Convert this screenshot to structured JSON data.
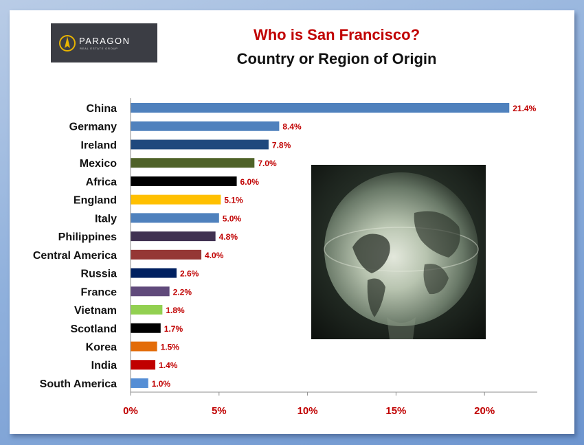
{
  "logo": {
    "name": "PARAGON",
    "subtitle": "REAL ESTATE GROUP"
  },
  "title": "Who is San Francisco?",
  "subtitle": "Country or Region of Origin",
  "chart_data": {
    "type": "bar",
    "orientation": "horizontal",
    "title": "Who is San Francisco?",
    "subtitle": "Country or Region of Origin",
    "categories": [
      "China",
      "Germany",
      "Ireland",
      "Mexico",
      "Africa",
      "England",
      "Italy",
      "Philippines",
      "Central America",
      "Russia",
      "France",
      "Vietnam",
      "Scotland",
      "Korea",
      "India",
      "South America"
    ],
    "values": [
      21.4,
      8.4,
      7.8,
      7.0,
      6.0,
      5.1,
      5.0,
      4.8,
      4.0,
      2.6,
      2.2,
      1.8,
      1.7,
      1.5,
      1.4,
      1.0
    ],
    "value_labels": [
      "21.4%",
      "8.4%",
      "7.8%",
      "7.0%",
      "6.0%",
      "5.1%",
      "5.0%",
      "4.8%",
      "4.0%",
      "2.6%",
      "2.2%",
      "1.8%",
      "1.7%",
      "1.5%",
      "1.4%",
      "1.0%"
    ],
    "bar_colors": [
      "#4f81bd",
      "#4f81bd",
      "#1f497d",
      "#4f6228",
      "#000000",
      "#ffc000",
      "#4f81bd",
      "#403151",
      "#953735",
      "#002060",
      "#604a7b",
      "#92d050",
      "#000000",
      "#e36c09",
      "#c00000",
      "#558ed5"
    ],
    "xticks": [
      "0%",
      "5%",
      "10%",
      "15%",
      "20%"
    ],
    "xtick_values": [
      0,
      5,
      10,
      15,
      20
    ],
    "xlim": [
      0,
      23
    ],
    "xlabel": "",
    "ylabel": "",
    "grid": false,
    "legend": "none"
  },
  "colors": {
    "title": "#c00000",
    "value_label": "#c00000",
    "tick_label": "#c00000",
    "category_label": "#111111"
  },
  "image": {
    "subject": "glass globe"
  }
}
